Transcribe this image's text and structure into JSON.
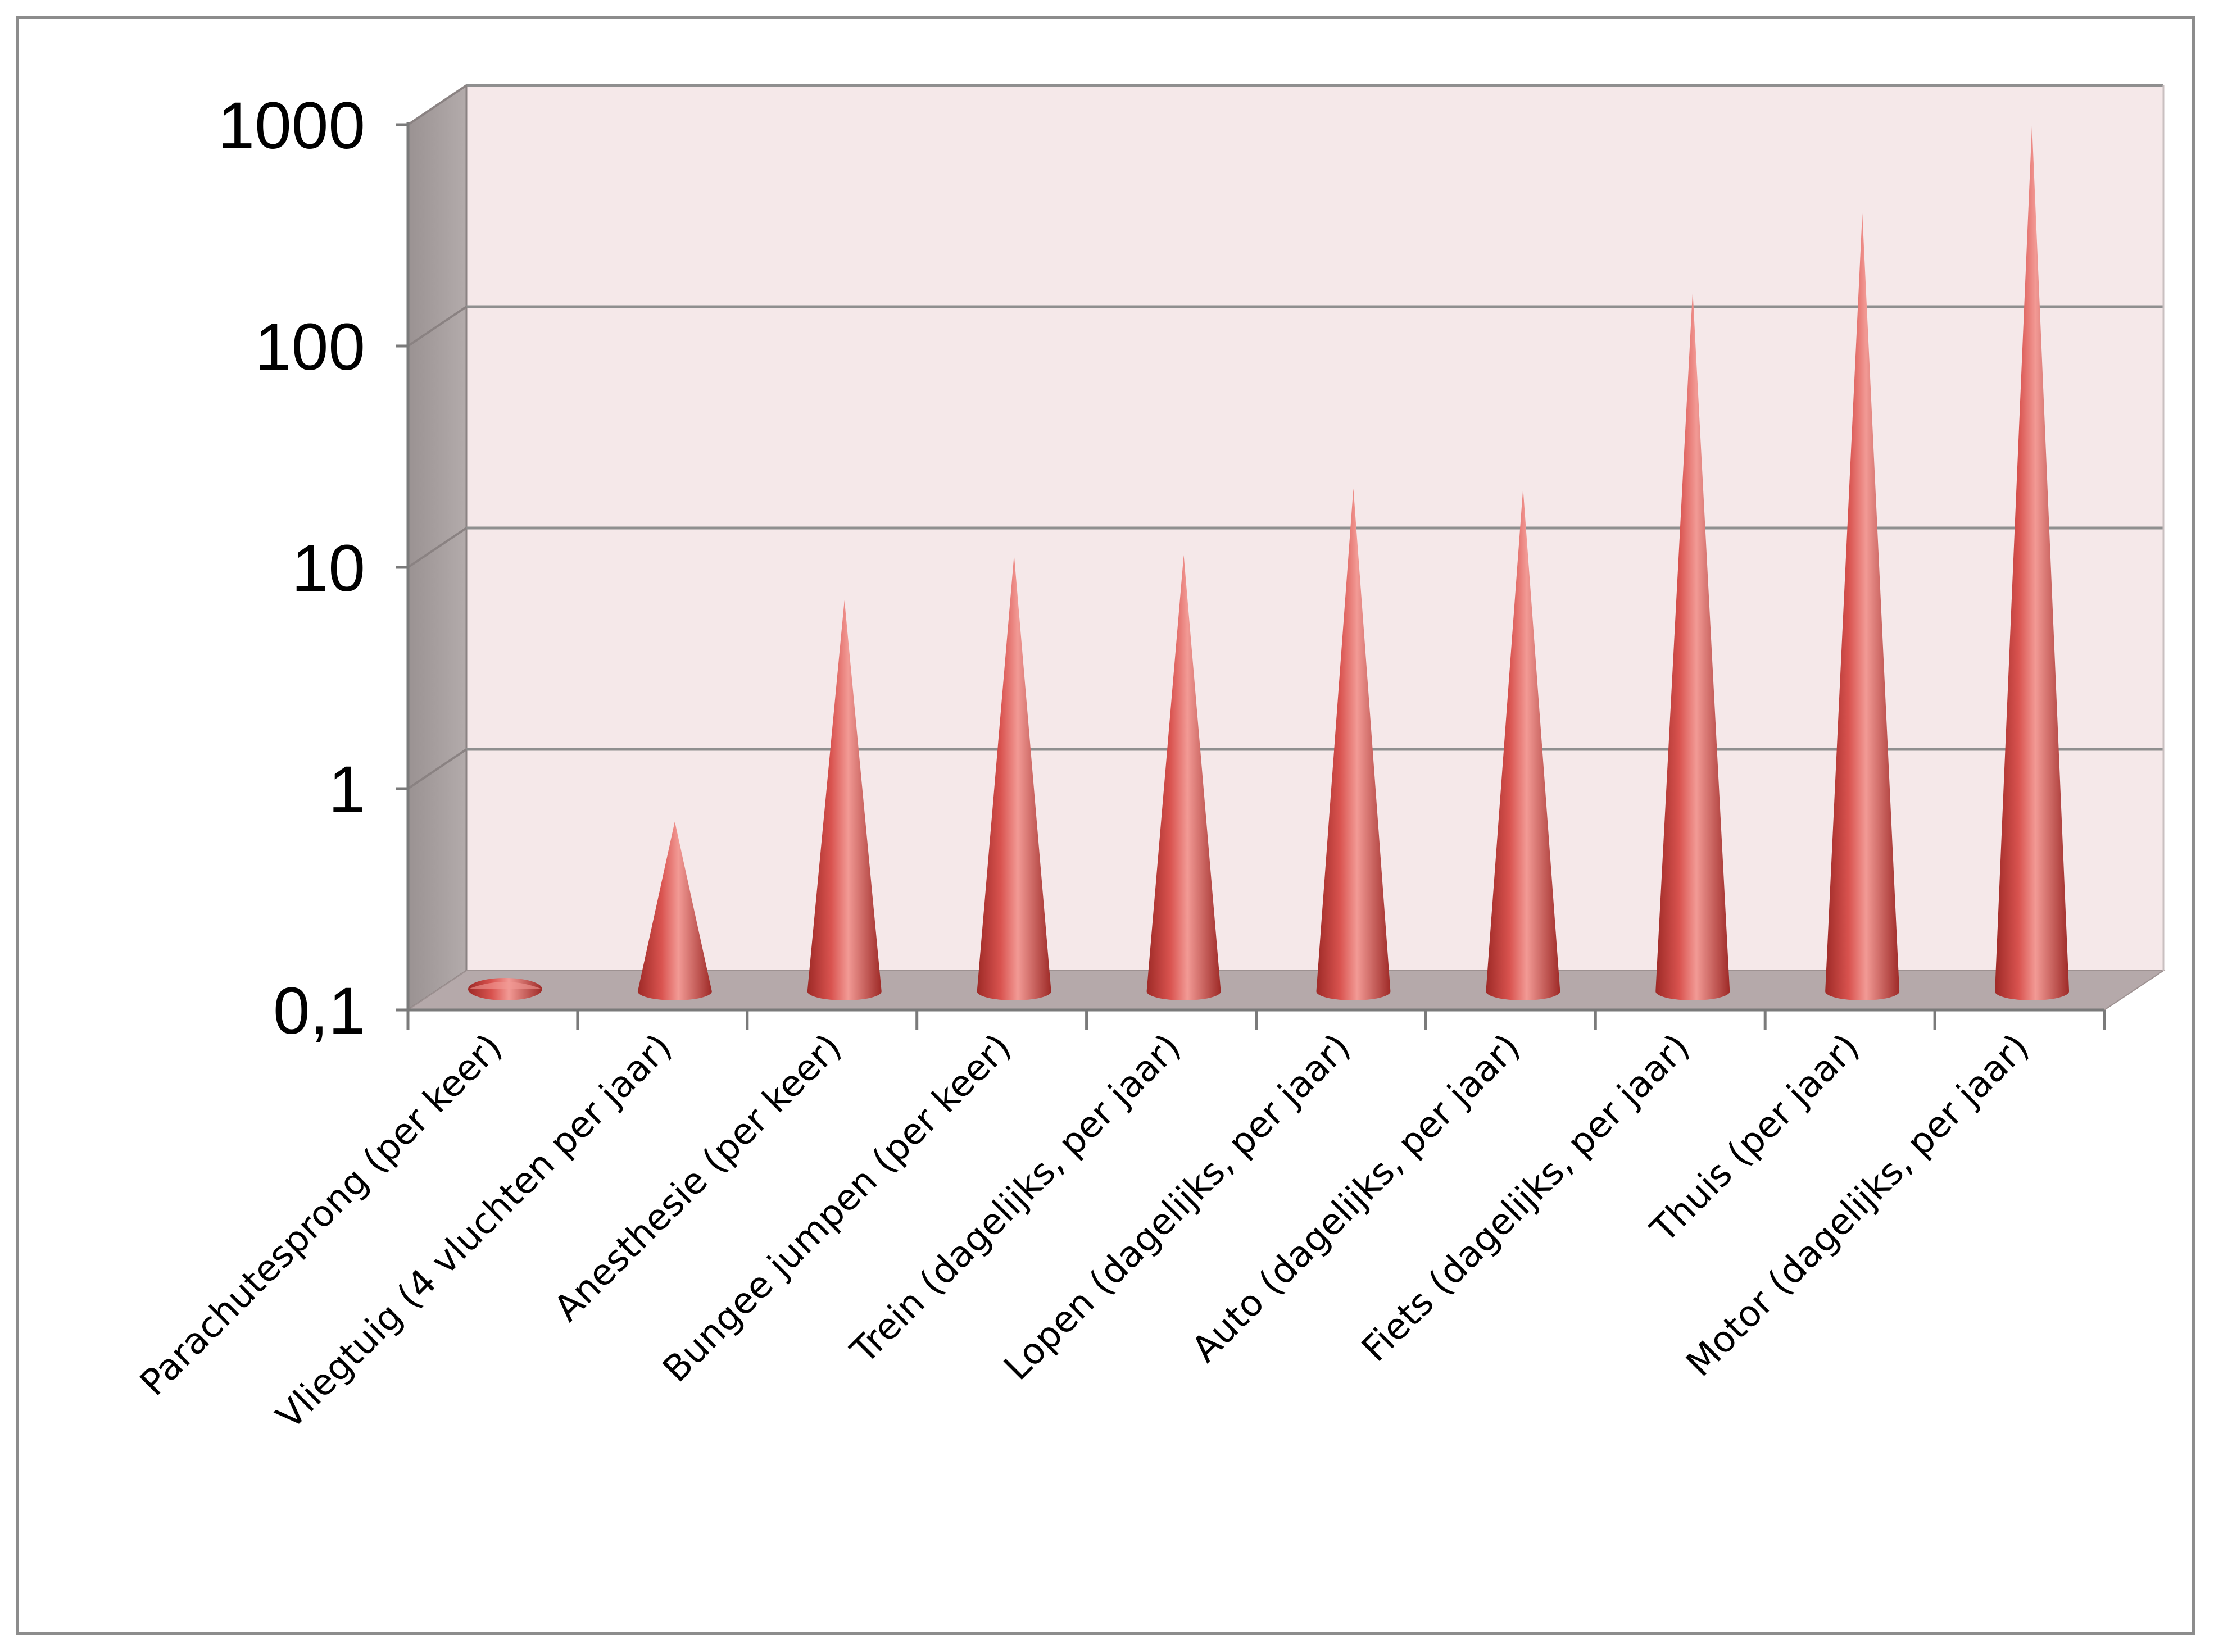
{
  "chart_data": {
    "type": "bar",
    "style": "3d-cone",
    "y_scale": "log",
    "ylim": [
      0.1,
      1000
    ],
    "y_ticks": [
      "0,1",
      "1",
      "10",
      "100",
      "1000"
    ],
    "grid": true,
    "title": "",
    "xlabel": "",
    "ylabel": "",
    "categories": [
      "Parachutesprong (per keer)",
      "Vliegtuig (4 vluchten per jaar)",
      "Anesthesie (per keer)",
      "Bungee jumpen (per keer)",
      "Trein (dagelijks, per jaar)",
      "Lopen (dagelijks, per jaar)",
      "Auto (dagelijks, per jaar)",
      "Fiets (dagelijks, per jaar)",
      "Thuis (per jaar)",
      "Motor (dagelijks, per jaar)"
    ],
    "values": [
      0.1,
      0.5,
      5,
      8,
      8,
      16,
      16,
      125,
      280,
      700
    ],
    "colors": {
      "cone": "#d9534f",
      "cone_dark": "#9e2a27",
      "cone_light": "#f29a95",
      "back_wall": "#f5e8e9",
      "side_wall": "#a8a0a0",
      "floor": "#b5a9aa",
      "gridline": "#8f8f8f"
    }
  }
}
